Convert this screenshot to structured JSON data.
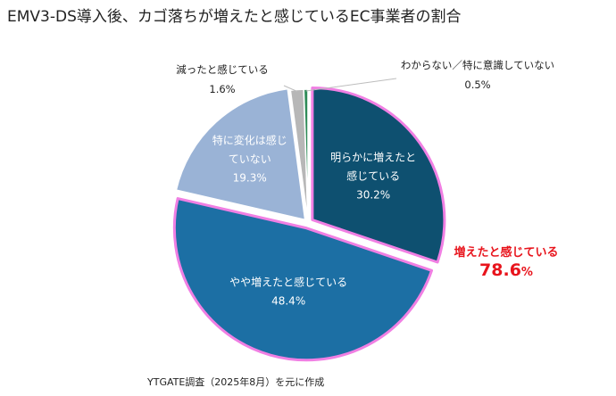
{
  "title": "EMV3-DS導入後、カゴ落ちが増えたと感じているEC事業者の割合",
  "source": "YTGATE調査（2025年8月）を元に作成",
  "callout": {
    "label": "増えたと感じている",
    "value": "78.6",
    "unit": "%"
  },
  "chart_data": {
    "type": "pie",
    "title": "EMV3-DS導入後、カゴ落ちが増えたと感じているEC事業者の割合",
    "slices": [
      {
        "label_lines": [
          "明らかに増えたと",
          "感じている"
        ],
        "value": 30.2,
        "value_label": "30.2%",
        "color": "#0e5070",
        "highlight": true
      },
      {
        "label_lines": [
          "やや増えたと感じている"
        ],
        "value": 48.4,
        "value_label": "48.4%",
        "color": "#1c6fa4",
        "highlight": true
      },
      {
        "label_lines": [
          "特に変化は感じ",
          "ていない"
        ],
        "value": 19.3,
        "value_label": "19.3%",
        "color": "#9ab3d6",
        "highlight": false
      },
      {
        "label_lines": [
          "減ったと感じている"
        ],
        "value": 1.6,
        "value_label": "1.6%",
        "color": "#b7b7b7",
        "highlight": false
      },
      {
        "label_lines": [
          "わからない／特に意識していない"
        ],
        "value": 0.5,
        "value_label": "0.5%",
        "color": "#2e8b57",
        "highlight": false
      }
    ],
    "highlight_border_color": "#f07fe3",
    "callout_color": "#e8141c"
  }
}
